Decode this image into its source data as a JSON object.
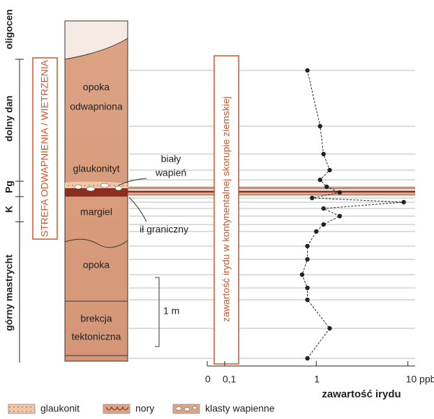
{
  "chart_data": {
    "type": "line",
    "xlabel": "zawartość irydu",
    "xscale": "log",
    "xlim": [
      0,
      12
    ],
    "xticks": [
      0,
      {
        "value": 0.1,
        "label": "0,1"
      },
      1,
      {
        "value": 10,
        "label": "10 ppb"
      }
    ],
    "values": [
      0.8,
      1.1,
      1.2,
      1.4,
      1.1,
      1.3,
      1.8,
      0.9,
      9,
      1.2,
      1.8,
      1.2,
      1.0,
      0.8,
      0.8,
      0.7,
      0.8,
      0.8,
      1.4,
      0.8
    ],
    "depths": [
      1.75,
      0.95,
      0.55,
      0.32,
      0.18,
      0.08,
      0,
      -0.08,
      -0.14,
      -0.23,
      -0.34,
      -0.46,
      -0.56,
      -0.77,
      -0.96,
      -1.18,
      -1.37,
      -1.54,
      -1.95,
      -2.38
    ],
    "color": "#222222",
    "crust_label": "zawartość irydu w kontynentalnej skorupie ziemskiej"
  },
  "stages": [
    "oligocen",
    "dolny dan",
    "Pg",
    "K",
    "górny mastrycht"
  ],
  "zone_label": "STREFA ODWAPNIENIA / WIETRZENIA",
  "column": {
    "labels": [
      [
        "opoka",
        "odwapniona"
      ],
      [
        "glaukonityt"
      ],
      [
        "margiel"
      ],
      [
        "opoka"
      ],
      [
        "brekcja",
        "tektoniczna"
      ]
    ]
  },
  "callouts": [
    [
      "biały",
      "wapień"
    ],
    [
      "ił graniczny"
    ]
  ],
  "scale_bar": "1 m",
  "legend": [
    "glaukonit",
    "nory",
    "klasty wapienne"
  ]
}
